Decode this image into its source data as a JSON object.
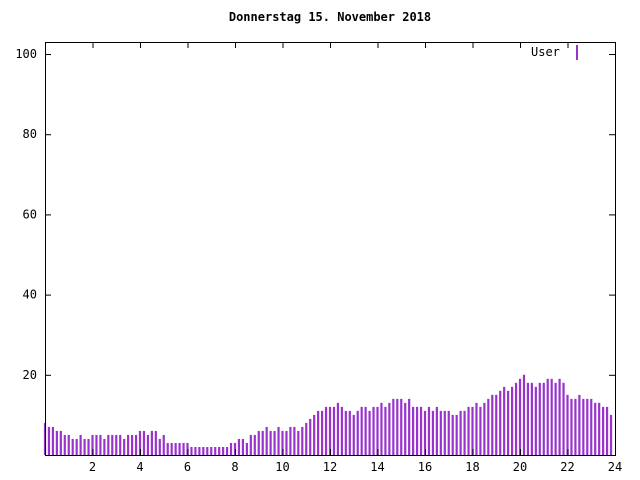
{
  "page": {
    "background": "#ffffff",
    "axis_color": "#000000"
  },
  "legend": {
    "label": "User",
    "color": "#9933cc"
  },
  "chart_data": {
    "type": "bar",
    "title": "Donnerstag 15. November 2018",
    "xlabel": "",
    "ylabel": "",
    "xlim": [
      0,
      24
    ],
    "ylim": [
      0,
      103
    ],
    "xticks": [
      2,
      4,
      6,
      8,
      10,
      12,
      14,
      16,
      18,
      20,
      22,
      24
    ],
    "yticks": [
      20,
      40,
      60,
      80,
      100
    ],
    "grid": false,
    "legend_position": "top-right-inside",
    "x_unit": "hour-of-day",
    "x_start_hour": 0,
    "x_step_minutes": 10,
    "series": [
      {
        "name": "User",
        "color": "#9933cc",
        "values": [
          8,
          7,
          7,
          6,
          6,
          5,
          5,
          4,
          4,
          5,
          4,
          4,
          5,
          5,
          5,
          4,
          5,
          5,
          5,
          5,
          4,
          5,
          5,
          5,
          6,
          6,
          5,
          6,
          6,
          4,
          5,
          3,
          3,
          3,
          3,
          3,
          3,
          2,
          2,
          2,
          2,
          2,
          2,
          2,
          2,
          2,
          2,
          3,
          3,
          4,
          4,
          3,
          5,
          5,
          6,
          6,
          7,
          6,
          6,
          7,
          6,
          6,
          7,
          7,
          6,
          7,
          8,
          9,
          10,
          11,
          11,
          12,
          12,
          12,
          13,
          12,
          11,
          11,
          10,
          11,
          12,
          12,
          11,
          12,
          12,
          13,
          12,
          13,
          14,
          14,
          14,
          13,
          14,
          12,
          12,
          12,
          11,
          12,
          11,
          12,
          11,
          11,
          11,
          10,
          10,
          11,
          11,
          12,
          12,
          13,
          12,
          13,
          14,
          15,
          15,
          16,
          17,
          16,
          17,
          18,
          19,
          20,
          18,
          18,
          17,
          18,
          18,
          19,
          19,
          18,
          19,
          18,
          15,
          14,
          14,
          15,
          14,
          14,
          14,
          13,
          13,
          12,
          12,
          10
        ]
      }
    ]
  }
}
